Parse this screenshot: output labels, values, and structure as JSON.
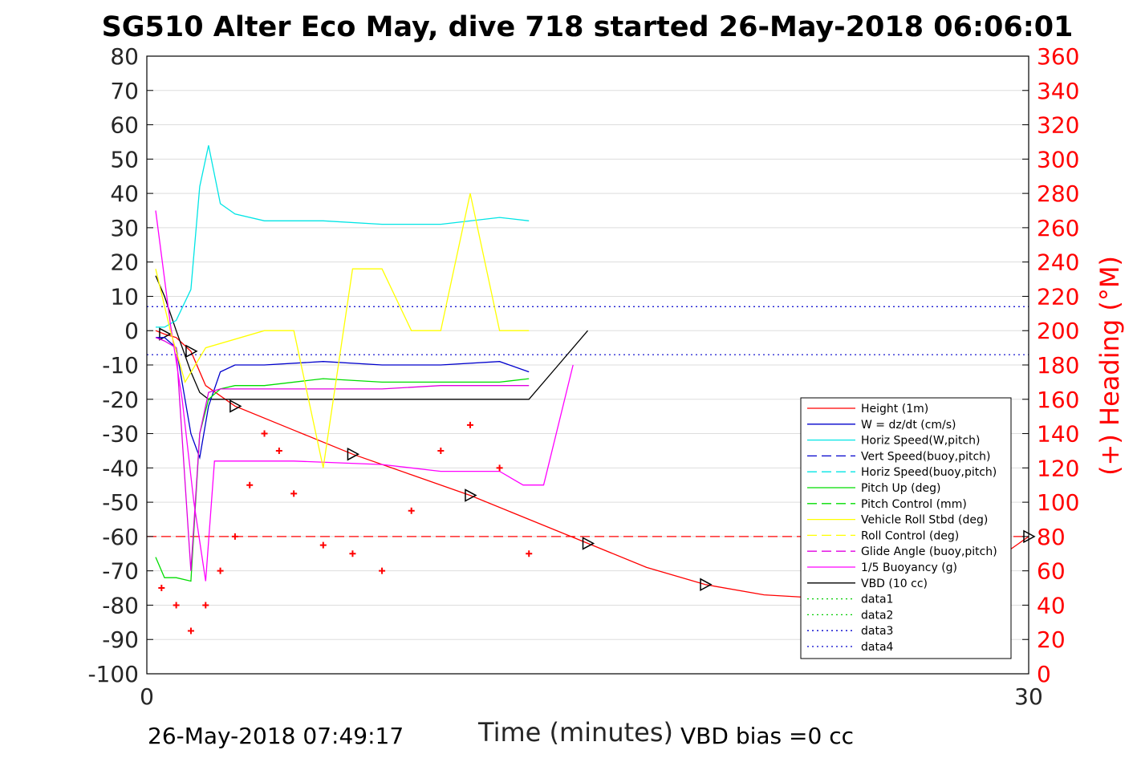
{
  "title": "SG510 Alter Eco May, dive 718 started 26-May-2018 06:06:01",
  "footer": {
    "timestamp": "26-May-2018 07:49:17",
    "vbd_bias": "VBD bias =0 cc"
  },
  "chart_data": {
    "type": "line",
    "xlabel": "Time (minutes)",
    "ylabel_left": "",
    "ylabel_right": "(+) Heading (°M)",
    "xlim": [
      0,
      30
    ],
    "ylim_left": [
      -100,
      80
    ],
    "ylim_right": [
      0,
      360
    ],
    "x_ticks": [
      "0",
      "30"
    ],
    "y_ticks_left": [
      "80",
      "70",
      "60",
      "50",
      "40",
      "30",
      "20",
      "10",
      "0",
      "-10",
      "-20",
      "-30",
      "-40",
      "-50",
      "-60",
      "-70",
      "-80",
      "-90",
      "-100"
    ],
    "y_ticks_right": [
      "360",
      "340",
      "320",
      "300",
      "280",
      "260",
      "240",
      "220",
      "200",
      "180",
      "160",
      "140",
      "120",
      "100",
      "80",
      "60",
      "40",
      "20",
      "0"
    ],
    "grid": true,
    "legend_position": "bottom-right",
    "colors": {
      "height": "#ff0000",
      "w": "#0000cc",
      "horiz_speed": "#00e5e5",
      "pitch": "#00dd00",
      "roll": "#ffff00",
      "glide": "#e000e0",
      "buoyancy": "#ff00ff",
      "vbd": "#000000",
      "heading": "#ff0000"
    },
    "legend": [
      {
        "label": "Height (1m)",
        "color": "#ff0000",
        "dash": "solid"
      },
      {
        "label": "W = dz/dt (cm/s)",
        "color": "#0000cc",
        "dash": "solid"
      },
      {
        "label": "Horiz Speed(W,pitch)",
        "color": "#00e5e5",
        "dash": "solid"
      },
      {
        "label": "Vert Speed(buoy,pitch)",
        "color": "#0000cc",
        "dash": "dashed"
      },
      {
        "label": "Horiz Speed(buoy,pitch)",
        "color": "#00e5e5",
        "dash": "dashed"
      },
      {
        "label": "Pitch Up (deg)",
        "color": "#00dd00",
        "dash": "solid"
      },
      {
        "label": "Pitch Control (mm)",
        "color": "#00dd00",
        "dash": "dashed"
      },
      {
        "label": "Vehicle Roll Stbd (deg)",
        "color": "#ffff00",
        "dash": "solid"
      },
      {
        "label": "Roll Control (deg)",
        "color": "#ffff00",
        "dash": "dashed"
      },
      {
        "label": "Glide Angle (buoy,pitch)",
        "color": "#e000e0",
        "dash": "dashed"
      },
      {
        "label": "1/5 Buoyancy (g)",
        "color": "#ff00ff",
        "dash": "solid"
      },
      {
        "label": "VBD (10 cc)",
        "color": "#000000",
        "dash": "solid"
      },
      {
        "label": "data1",
        "color": "#00cc00",
        "dash": "dotted"
      },
      {
        "label": "data2",
        "color": "#00cc00",
        "dash": "dotted"
      },
      {
        "label": "data3",
        "color": "#0000cc",
        "dash": "dotted"
      },
      {
        "label": "data4",
        "color": "#0000cc",
        "dash": "dotted"
      }
    ],
    "reference_lines": [
      {
        "axis": "left",
        "y": 7,
        "color": "#0000cc",
        "dash": "dotted"
      },
      {
        "axis": "left",
        "y": -7,
        "color": "#0000cc",
        "dash": "dotted"
      },
      {
        "axis": "right",
        "y": 80,
        "color": "#ff0000",
        "dash": "dashed"
      }
    ],
    "series": [
      {
        "key": "height",
        "x": [
          0.3,
          0.6,
          1.0,
          1.5,
          2.0,
          3,
          5,
          7,
          9,
          11,
          13,
          15,
          17,
          19,
          21,
          23,
          25,
          27,
          29,
          30
        ],
        "y": [
          0,
          -1,
          -2,
          -6,
          -16,
          -22,
          -29,
          -36,
          -42,
          -48,
          -55,
          -62,
          -69,
          -74,
          -77,
          -78,
          -77,
          -73,
          -66,
          -60
        ]
      },
      {
        "key": "vbd",
        "x": [
          0.3,
          0.6,
          1.0,
          1.5,
          1.8,
          2.1,
          3,
          4,
          6,
          8,
          10,
          12,
          13,
          14,
          15
        ],
        "y": [
          16,
          10,
          0,
          -12,
          -18,
          -20,
          -20,
          -20,
          -20,
          -20,
          -20,
          -20,
          -20,
          -10,
          0
        ]
      },
      {
        "key": "w",
        "x": [
          0.3,
          0.6,
          1.0,
          1.5,
          1.8,
          2.1,
          2.5,
          3,
          4,
          6,
          8,
          10,
          12,
          13
        ],
        "y": [
          -2,
          -2,
          -5,
          -30,
          -37,
          -22,
          -12,
          -10,
          -10,
          -9,
          -10,
          -10,
          -9,
          -12
        ]
      },
      {
        "key": "horiz_speed",
        "x": [
          0.3,
          0.6,
          1.0,
          1.5,
          1.8,
          2.1,
          2.5,
          3,
          4,
          6,
          8,
          10,
          12,
          13
        ],
        "y": [
          1,
          1,
          3,
          12,
          42,
          54,
          37,
          34,
          32,
          32,
          31,
          31,
          33,
          32
        ]
      },
      {
        "key": "pitch",
        "x": [
          0.3,
          0.6,
          1.0,
          1.5,
          1.8,
          2.1,
          2.5,
          3,
          4,
          6,
          8,
          10,
          12,
          13
        ],
        "y": [
          -66,
          -72,
          -72,
          -73,
          -30,
          -20,
          -17,
          -16,
          -16,
          -14,
          -15,
          -15,
          -15,
          -14
        ]
      },
      {
        "key": "glide",
        "x": [
          0.3,
          0.6,
          1.0,
          1.5,
          1.8,
          2.1,
          2.5,
          3,
          4,
          6,
          8,
          10,
          12,
          13
        ],
        "y": [
          -2,
          -3,
          -5,
          -70,
          -30,
          -18,
          -17,
          -17,
          -17,
          -17,
          -17,
          -16,
          -16,
          -16
        ]
      },
      {
        "key": "buoyancy",
        "x": [
          0.3,
          0.8,
          1.2,
          1.6,
          2.0,
          2.3,
          3,
          5,
          8,
          10,
          12,
          12.8,
          13.5,
          14.5
        ],
        "y": [
          35,
          2,
          -20,
          -50,
          -73,
          -38,
          -38,
          -38,
          -39,
          -41,
          -41,
          -45,
          -45,
          -10
        ]
      },
      {
        "key": "roll",
        "x": [
          0.3,
          0.8,
          1.3,
          2,
          4,
          5,
          6,
          7,
          8,
          9,
          10,
          11,
          12,
          13
        ],
        "y": [
          18,
          0,
          -15,
          -5,
          0,
          0,
          -40,
          18,
          18,
          0,
          0,
          40,
          0,
          0
        ]
      },
      {
        "key": "heading",
        "x": [
          0.5,
          1,
          1.5,
          2,
          2.5,
          3,
          3.5,
          4,
          4.5,
          5,
          6,
          7,
          8,
          9,
          10,
          11,
          12,
          13
        ],
        "y": [
          50,
          40,
          25,
          40,
          60,
          80,
          110,
          140,
          130,
          105,
          75,
          70,
          60,
          95,
          130,
          145,
          120,
          70
        ]
      }
    ]
  }
}
